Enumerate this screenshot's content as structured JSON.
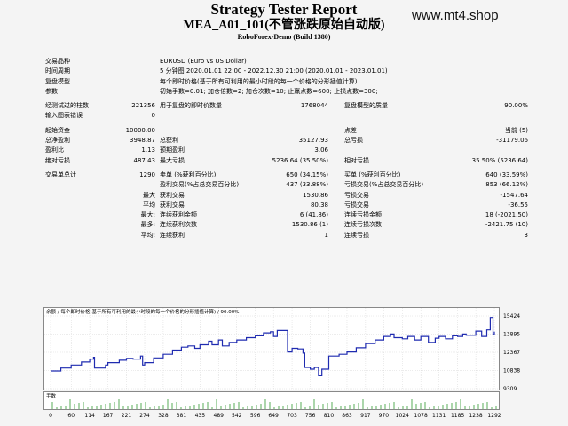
{
  "header": {
    "title": "Strategy Tester Report",
    "subtitle": "MEA_A01_101(不管涨跌原始自动版)",
    "server": "RoboForex-Demo (Build 1380)",
    "watermark": "www.mt4.shop"
  },
  "summary": {
    "symbol_label": "交易品种",
    "symbol_value": "EURUSD (Euro vs US Dollar)",
    "period_label": "时间周期",
    "period_value": "5 分钟图 2020.01.01 22:00 - 2022.12.30 21:00 (2020.01.01 - 2023.01.01)",
    "model_label": "复盘模型",
    "model_value": "每个即时价格(基于所有可利用的最小时段的每一个价格的分形插值计算)",
    "params_label": "参数",
    "params_value": "初始手数=0.01; 加仓倍数=2; 加仓次数=10; 止赢点数=600; 止损点数=300;",
    "bars_label": "经测试过的柱数",
    "bars_value": "221356",
    "ticks_label": "用于复盘的即时价数量",
    "ticks_value": "1768044",
    "quality_label": "复盘模型的质量",
    "quality_value": "90.00%",
    "mismatch_label": "输入图表错误",
    "mismatch_value": "0",
    "deposit_label": "起始资金",
    "deposit_value": "10000.00",
    "spread_label": "点差",
    "spread_value": "当前 (5)",
    "netprofit_label": "总净盈利",
    "netprofit_value": "3948.87",
    "grossprofit_label": "总获利",
    "grossprofit_value": "35127.93",
    "grossloss_label": "总亏损",
    "grossloss_value": "-31179.06",
    "pf_label": "盈利比",
    "pf_value": "1.13",
    "expected_label": "预期盈利",
    "expected_value": "3.06",
    "absdd_label": "绝对亏损",
    "absdd_value": "487.43",
    "maxdd_label": "最大亏损",
    "maxdd_value": "5236.64 (35.50%)",
    "reldd_label": "相对亏损",
    "reldd_value": "35.50% (5236.64)",
    "trades_label": "交易单总计",
    "trades_value": "1290",
    "short_label": "卖单 (%获利百分比)",
    "short_value": "650 (34.15%)",
    "long_label": "买单 (%获利百分比)",
    "long_value": "640 (33.59%)",
    "profittrades_label": "盈利交易(%占总交易百分比)",
    "profittrades_value": "437 (33.88%)",
    "losstrades_label": "亏损交易(%占总交易百分比)",
    "losstrades_value": "853 (66.12%)",
    "largest_label": "最大",
    "largest_profit_label": "获利交易",
    "largest_profit_value": "1530.86",
    "largest_loss_label": "亏损交易",
    "largest_loss_value": "-1547.64",
    "average_label": "平均",
    "average_profit_label": "获利交易",
    "average_profit_value": "80.38",
    "average_loss_label": "亏损交易",
    "average_loss_value": "-36.55",
    "maxcons_label": "最大:",
    "maxcons_wins_label": "连续获利金额",
    "maxcons_wins_value": "6 (41.86)",
    "maxcons_losses_label": "连续亏损金额",
    "maxcons_losses_value": "18 (-2021.50)",
    "maximal_label": "最多:",
    "maximal_wins_label": "连续获利次数",
    "maximal_wins_value": "1530.86 (1)",
    "maximal_losses_label": "连续亏损次数",
    "maximal_losses_value": "-2421.75 (10)",
    "avgcons_label": "平均:",
    "avgcons_wins_label": "连续获利",
    "avgcons_wins_value": "1",
    "avgcons_losses_label": "连续亏损",
    "avgcons_losses_value": "3"
  },
  "chart": {
    "legend": "余额 / 每个即时价格(基于所有可利用的最小时段的每一个价格的分形插值计算) / 90.00%",
    "volume_label": "手数"
  },
  "chart_data": {
    "type": "line",
    "y_ticks": [
      15424,
      13895,
      12367,
      10838,
      9309
    ],
    "x_ticks": [
      0,
      60,
      114,
      167,
      221,
      274,
      328,
      381,
      435,
      489,
      542,
      596,
      649,
      703,
      756,
      810,
      863,
      917,
      970,
      1024,
      1078,
      1131,
      1185,
      1238,
      1292
    ],
    "xlim": [
      0,
      1292
    ],
    "ylim": [
      9309,
      15424
    ],
    "series": [
      {
        "values_description": "balance",
        "x": [
          0,
          30,
          60,
          90,
          114,
          125,
          128,
          160,
          167,
          200,
          221,
          240,
          262,
          268,
          274,
          300,
          328,
          355,
          381,
          400,
          420,
          435,
          460,
          470,
          489,
          500,
          520,
          542,
          570,
          596,
          620,
          640,
          649,
          660,
          690,
          703,
          720,
          735,
          740,
          756,
          768,
          780,
          790,
          810,
          840,
          863,
          890,
          917,
          945,
          970,
          990,
          1000,
          1024,
          1040,
          1060,
          1078,
          1100,
          1120,
          1131,
          1150,
          1170,
          1185,
          1200,
          1210,
          1238,
          1255,
          1270,
          1280,
          1288,
          1292
        ],
        "y": [
          10800,
          11050,
          11300,
          11550,
          11800,
          11950,
          11050,
          11300,
          11500,
          11700,
          11850,
          11800,
          12050,
          11300,
          11500,
          11900,
          12200,
          12550,
          12800,
          12900,
          12700,
          13000,
          13300,
          13000,
          13400,
          12900,
          13200,
          13400,
          13600,
          13750,
          14000,
          14100,
          13700,
          14200,
          12400,
          12700,
          12650,
          12300,
          11100,
          10950,
          11100,
          10400,
          10950,
          12050,
          12200,
          12400,
          12750,
          13100,
          13400,
          13700,
          13900,
          13600,
          13500,
          13700,
          13400,
          13700,
          13200,
          13550,
          13700,
          13500,
          13750,
          13700,
          13900,
          13800,
          14150,
          13700,
          14250,
          15300,
          13850,
          14100
        ]
      }
    ],
    "grid": true
  }
}
